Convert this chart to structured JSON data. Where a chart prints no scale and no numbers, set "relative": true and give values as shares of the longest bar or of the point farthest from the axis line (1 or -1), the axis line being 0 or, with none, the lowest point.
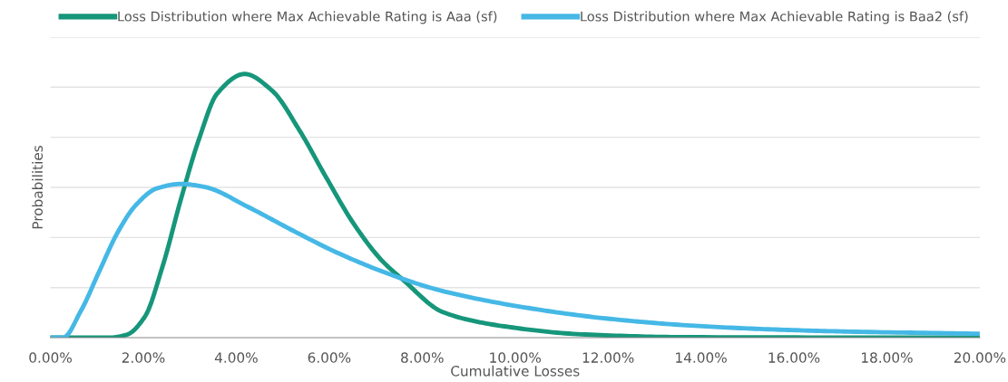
{
  "chart_data": {
    "type": "line",
    "relative": true,
    "xlabel": "Cumulative Losses",
    "ylabel": "Probabilities",
    "xlim": [
      0,
      20
    ],
    "xticks": [
      {
        "value": 0,
        "label": "0.00%"
      },
      {
        "value": 2,
        "label": "2.00%"
      },
      {
        "value": 4,
        "label": "4.00%"
      },
      {
        "value": 6,
        "label": "6.00%"
      },
      {
        "value": 8,
        "label": "8.00%"
      },
      {
        "value": 10,
        "label": "10.00%"
      },
      {
        "value": 12,
        "label": "12.00%"
      },
      {
        "value": 14,
        "label": "14.00%"
      },
      {
        "value": 16,
        "label": "16.00%"
      },
      {
        "value": 18,
        "label": "18.00%"
      },
      {
        "value": 20,
        "label": "20.00%"
      }
    ],
    "grid": "y",
    "legend": "top",
    "tick_labels": "x",
    "marker": "none",
    "line_style": "solid",
    "series": [
      {
        "name": "Loss Distribution where Max Achievable Rating is Aaa (sf)",
        "color": "#16967a",
        "x": [
          0,
          1.25,
          1.64,
          2.03,
          2.42,
          2.81,
          3.2,
          3.59,
          4.18,
          4.77,
          5.35,
          5.94,
          6.52,
          7.11,
          7.59,
          8.46,
          9.77,
          11.51,
          13.69,
          20
        ],
        "values": [
          0,
          0,
          0.011,
          0.079,
          0.274,
          0.526,
          0.754,
          0.926,
          1.0,
          0.937,
          0.789,
          0.606,
          0.434,
          0.297,
          0.219,
          0.096,
          0.043,
          0.012,
          0.002,
          0
        ]
      },
      {
        "name": "Loss Distribution where Max Achievable Rating is Baa2 (sf)",
        "color": "#45b8e6",
        "x": [
          0,
          0.27,
          0.66,
          1.05,
          1.45,
          1.84,
          2.29,
          2.81,
          3.33,
          4.24,
          5.22,
          6.2,
          7.5,
          8.46,
          10.2,
          11.95,
          13.69,
          15.44,
          17.18,
          20
        ],
        "values": [
          0,
          0,
          0.103,
          0.251,
          0.4,
          0.503,
          0.566,
          0.583,
          0.571,
          0.497,
          0.406,
          0.32,
          0.228,
          0.176,
          0.115,
          0.073,
          0.047,
          0.032,
          0.023,
          0.015
        ]
      }
    ]
  }
}
